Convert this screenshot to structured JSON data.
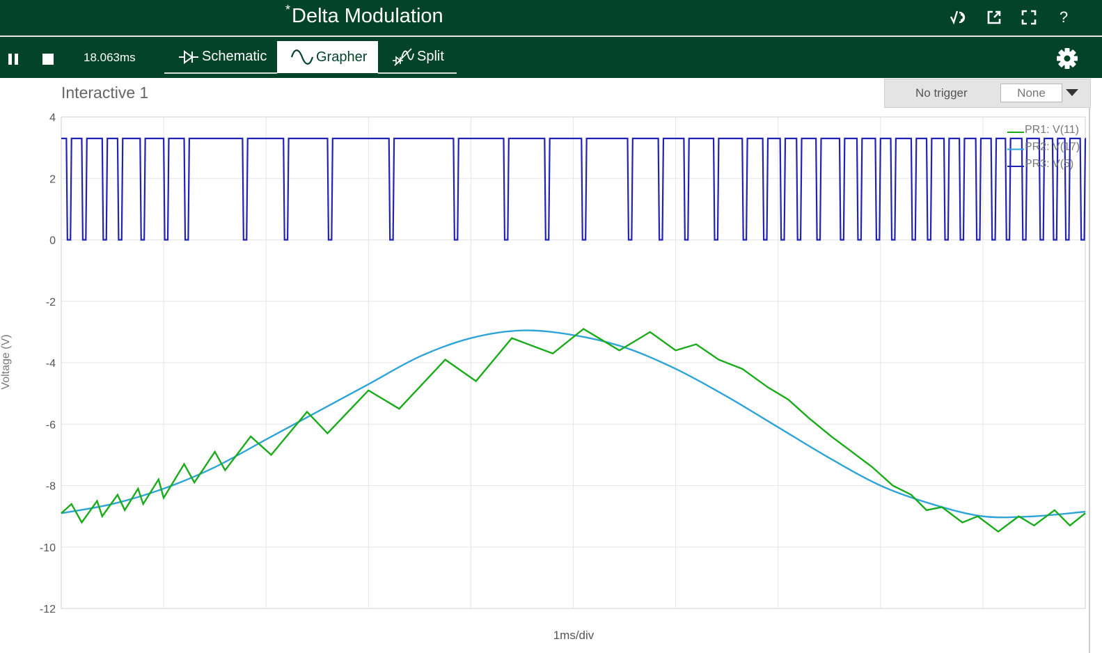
{
  "window": {
    "title": "Delta Modulation",
    "modified_marker": "*",
    "icons": [
      "scope-icon",
      "popout-icon",
      "fullscreen-icon",
      "help-icon"
    ],
    "help_label": "?"
  },
  "toolbar": {
    "time": "18.063ms",
    "tabs": [
      {
        "label": "Schematic",
        "icon": "diode-icon",
        "active": false
      },
      {
        "label": "Grapher",
        "icon": "sine-wave-icon",
        "active": true
      },
      {
        "label": "Split",
        "icon": "split-icon",
        "active": false
      }
    ]
  },
  "graph": {
    "title": "Interactive 1",
    "trigger_label": "No trigger",
    "trigger_value": "None",
    "background_color": "#ffffff"
  },
  "chart_data": {
    "type": "line",
    "title": "",
    "xlabel": "1ms/div",
    "ylabel": "Voltage (V)",
    "ylim": [
      -12,
      4
    ],
    "yticks": [
      4,
      2,
      0,
      -2,
      -4,
      -6,
      -8,
      -10,
      -12
    ],
    "x_divisions": 10,
    "grid": true,
    "legend_position": "top-right",
    "series": [
      {
        "name": "PR1: V(11)",
        "color": "#1aab1a",
        "description_type": "staircase",
        "step_points_ms": [
          0.0,
          0.1,
          0.2,
          0.35,
          0.4,
          0.55,
          0.62,
          0.75,
          0.8,
          0.95,
          1.0,
          1.2,
          1.3,
          1.5,
          1.6,
          1.85,
          2.05,
          2.4,
          2.6,
          3.0,
          3.3,
          3.75,
          4.05,
          4.4,
          4.8,
          5.1,
          5.45,
          5.75,
          6.0,
          6.2,
          6.42,
          6.65,
          6.9,
          7.1,
          7.3,
          7.52,
          7.72,
          7.92,
          8.12,
          8.3,
          8.45,
          8.6,
          8.8,
          8.95,
          9.15,
          9.35,
          9.5,
          9.7,
          9.85,
          10.0
        ],
        "values": [
          -8.9,
          -8.6,
          -9.2,
          -8.5,
          -9.0,
          -8.3,
          -8.8,
          -8.1,
          -8.6,
          -7.8,
          -8.4,
          -7.3,
          -7.9,
          -6.9,
          -7.5,
          -6.4,
          -7.0,
          -5.6,
          -6.3,
          -4.9,
          -5.5,
          -3.9,
          -4.6,
          -3.2,
          -3.7,
          -2.9,
          -3.6,
          -3.0,
          -3.6,
          -3.4,
          -3.9,
          -4.2,
          -4.8,
          -5.2,
          -5.8,
          -6.4,
          -6.9,
          -7.4,
          -8.0,
          -8.3,
          -8.8,
          -8.7,
          -9.2,
          -9.0,
          -9.5,
          -9.0,
          -9.3,
          -8.8,
          -9.3,
          -8.9
        ]
      },
      {
        "name": "PR2: V(17)",
        "color": "#2fa4d6",
        "x_ms": [
          0,
          0.5,
          1,
          1.5,
          2,
          2.5,
          3,
          3.5,
          4,
          4.5,
          5,
          5.5,
          6,
          6.5,
          7,
          7.5,
          8,
          8.5,
          9,
          9.5,
          10
        ],
        "values": [
          -8.9,
          -8.6,
          -8.1,
          -7.4,
          -6.5,
          -5.6,
          -4.7,
          -3.8,
          -3.2,
          -2.95,
          -3.1,
          -3.5,
          -4.2,
          -5.1,
          -6.1,
          -7.1,
          -8.0,
          -8.6,
          -9.0,
          -9.0,
          -8.85
        ]
      },
      {
        "name": "PR3: V(5)",
        "color": "#2023b4",
        "high": 3.3,
        "low": 0,
        "low_pulses_ms": [
          0.05,
          0.2,
          0.4,
          0.55,
          0.77,
          1.0,
          1.2,
          1.77,
          2.17,
          2.6,
          3.2,
          3.83,
          4.32,
          4.72,
          5.08,
          5.53,
          5.83,
          6.08,
          6.37,
          6.65,
          6.85,
          7.02,
          7.18,
          7.37,
          7.6,
          7.77,
          7.95,
          8.1,
          8.3,
          8.45,
          8.62,
          8.77,
          8.93,
          9.08,
          9.22,
          9.38,
          9.55,
          9.68,
          9.8,
          9.95
        ]
      }
    ]
  }
}
